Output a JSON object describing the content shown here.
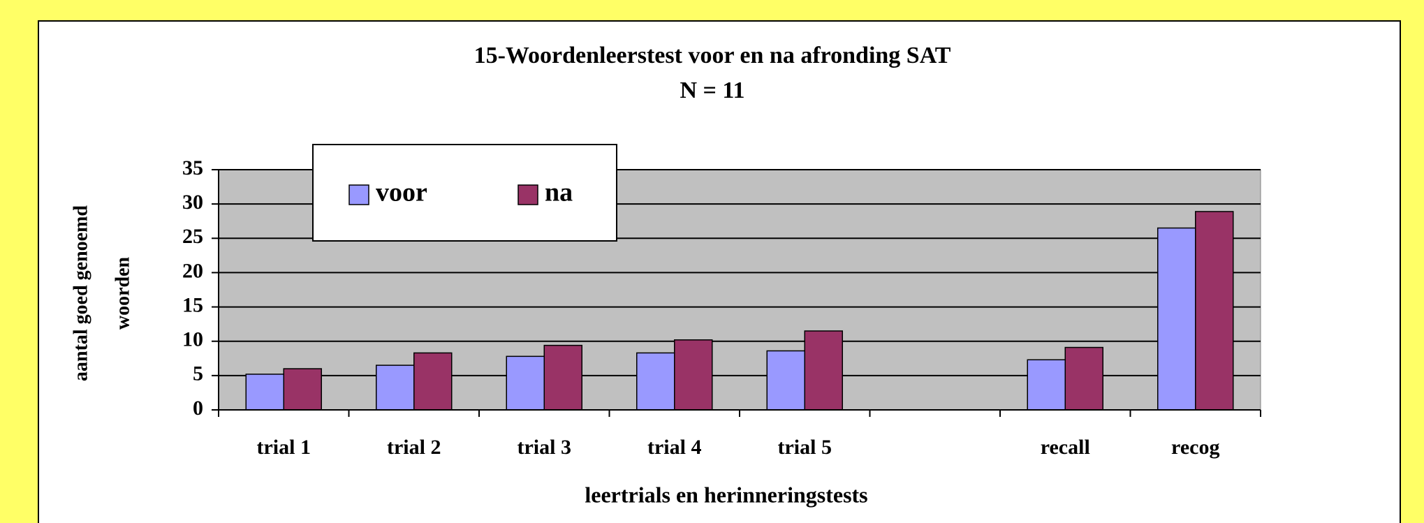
{
  "chart_data": {
    "type": "bar",
    "title": "15-Woordenleerstest voor en na afronding SAT",
    "subtitle": "N = 11",
    "ylabel": [
      "aantal goed genoemd",
      "woorden"
    ],
    "xlabel": "leertrials en herinneringstests",
    "categories": [
      "trial 1",
      "trial 2",
      "trial 3",
      "trial 4",
      "trial 5",
      null,
      "recall",
      "recog"
    ],
    "series": [
      {
        "name": "voor",
        "color": "#9999ff",
        "values": [
          5.2,
          6.5,
          7.8,
          8.3,
          8.6,
          null,
          7.3,
          26.5
        ]
      },
      {
        "name": "na",
        "color": "#993366",
        "values": [
          6.0,
          8.3,
          9.4,
          10.2,
          11.5,
          null,
          9.1,
          28.9
        ]
      }
    ],
    "ylim": [
      0,
      35
    ],
    "yticks": [
      0,
      5,
      10,
      15,
      20,
      25,
      30,
      35
    ],
    "grid": true,
    "legend": "top-left"
  }
}
